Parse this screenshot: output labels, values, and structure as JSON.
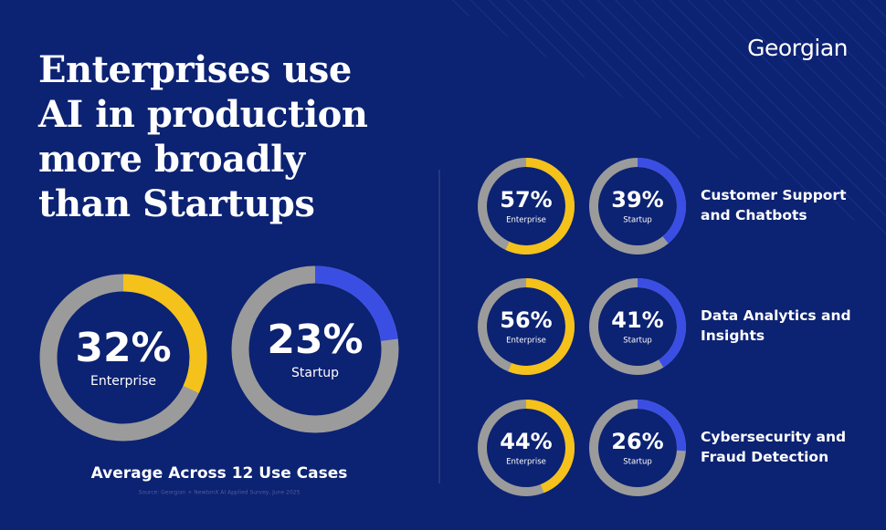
{
  "brand": "Georgian",
  "title": "Enterprises use AI in production more broadly than Startups",
  "source": "Source: Georgian + NewtonX AI Applied Survey, June 2025",
  "chart_data": [
    {
      "type": "donut",
      "title": "Average Across 12 Use Cases",
      "series": [
        {
          "name": "Enterprise",
          "color": "#f4c21a",
          "values": [
            32
          ],
          "value_labels": [
            "32%"
          ]
        },
        {
          "name": "Startup",
          "color": "#3b4ee3",
          "values": [
            23
          ],
          "value_labels": [
            "23%"
          ]
        }
      ]
    },
    {
      "type": "donut",
      "title": "Customer Support and Chatbots",
      "series": [
        {
          "name": "Enterprise",
          "color": "#f4c21a",
          "values": [
            57
          ],
          "value_labels": [
            "57%"
          ]
        },
        {
          "name": "Startup",
          "color": "#3b4ee3",
          "values": [
            39
          ],
          "value_labels": [
            "39%"
          ]
        }
      ]
    },
    {
      "type": "donut",
      "title": "Data Analytics and Insights",
      "series": [
        {
          "name": "Enterprise",
          "color": "#f4c21a",
          "values": [
            56
          ],
          "value_labels": [
            "56%"
          ]
        },
        {
          "name": "Startup",
          "color": "#3b4ee3",
          "values": [
            41
          ],
          "value_labels": [
            "41%"
          ]
        }
      ]
    },
    {
      "type": "donut",
      "title": "Cybersecurity and Fraud Detection",
      "series": [
        {
          "name": "Enterprise",
          "color": "#f4c21a",
          "values": [
            44
          ],
          "value_labels": [
            "44%"
          ]
        },
        {
          "name": "Startup",
          "color": "#3b4ee3",
          "values": [
            26
          ],
          "value_labels": [
            "26%"
          ]
        }
      ]
    }
  ]
}
